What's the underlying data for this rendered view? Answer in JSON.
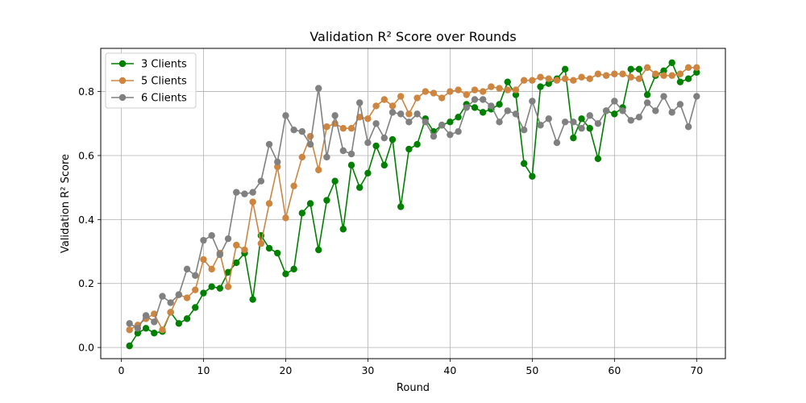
{
  "chart_data": {
    "type": "line",
    "title": "Validation R² Score over Rounds",
    "xlabel": "Round",
    "ylabel": "Validation R² Score",
    "xlim": [
      -2.5,
      73.5
    ],
    "ylim": [
      -0.035,
      0.935
    ],
    "xticks": [
      0,
      10,
      20,
      30,
      40,
      50,
      60,
      70
    ],
    "yticks": [
      0.0,
      0.2,
      0.4,
      0.6,
      0.8
    ],
    "grid": true,
    "legend_position": "upper left",
    "x": [
      1,
      2,
      3,
      4,
      5,
      6,
      7,
      8,
      9,
      10,
      11,
      12,
      13,
      14,
      15,
      16,
      17,
      18,
      19,
      20,
      21,
      22,
      23,
      24,
      25,
      26,
      27,
      28,
      29,
      30,
      31,
      32,
      33,
      34,
      35,
      36,
      37,
      38,
      39,
      40,
      41,
      42,
      43,
      44,
      45,
      46,
      47,
      48,
      49,
      50,
      51,
      52,
      53,
      54,
      55,
      56,
      57,
      58,
      59,
      60,
      61,
      62,
      63,
      64,
      65,
      66,
      67,
      68,
      69,
      70
    ],
    "series": [
      {
        "name": "3 Clients",
        "color": "#008000",
        "values": [
          0.005,
          0.045,
          0.06,
          0.045,
          0.05,
          0.11,
          0.075,
          0.09,
          0.125,
          0.17,
          0.19,
          0.185,
          0.235,
          0.265,
          0.295,
          0.15,
          0.35,
          0.31,
          0.295,
          0.23,
          0.245,
          0.42,
          0.45,
          0.305,
          0.46,
          0.52,
          0.37,
          0.57,
          0.5,
          0.545,
          0.63,
          0.57,
          0.65,
          0.44,
          0.62,
          0.635,
          0.715,
          0.675,
          0.695,
          0.705,
          0.72,
          0.76,
          0.75,
          0.735,
          0.745,
          0.76,
          0.83,
          0.79,
          0.575,
          0.535,
          0.815,
          0.825,
          0.84,
          0.87,
          0.655,
          0.715,
          0.685,
          0.59,
          0.74,
          0.73,
          0.75,
          0.87,
          0.87,
          0.79,
          0.85,
          0.865,
          0.89,
          0.83,
          0.84,
          0.86
        ]
      },
      {
        "name": "5 Clients",
        "color": "#cd853f",
        "values": [
          0.055,
          0.07,
          0.09,
          0.105,
          0.055,
          0.11,
          0.165,
          0.155,
          0.18,
          0.275,
          0.245,
          0.295,
          0.19,
          0.32,
          0.305,
          0.455,
          0.325,
          0.45,
          0.565,
          0.405,
          0.505,
          0.595,
          0.66,
          0.555,
          0.69,
          0.7,
          0.685,
          0.685,
          0.72,
          0.715,
          0.755,
          0.775,
          0.755,
          0.785,
          0.73,
          0.78,
          0.8,
          0.795,
          0.78,
          0.8,
          0.805,
          0.79,
          0.805,
          0.8,
          0.815,
          0.81,
          0.805,
          0.805,
          0.835,
          0.835,
          0.845,
          0.84,
          0.835,
          0.84,
          0.835,
          0.845,
          0.84,
          0.855,
          0.85,
          0.855,
          0.855,
          0.845,
          0.84,
          0.875,
          0.855,
          0.85,
          0.85,
          0.855,
          0.875,
          0.875
        ]
      },
      {
        "name": "6 Clients",
        "color": "#808080",
        "values": [
          0.075,
          0.06,
          0.1,
          0.08,
          0.16,
          0.14,
          0.165,
          0.245,
          0.225,
          0.335,
          0.35,
          0.29,
          0.34,
          0.485,
          0.48,
          0.485,
          0.52,
          0.635,
          0.58,
          0.725,
          0.68,
          0.675,
          0.635,
          0.81,
          0.595,
          0.725,
          0.615,
          0.605,
          0.765,
          0.64,
          0.7,
          0.655,
          0.735,
          0.73,
          0.705,
          0.73,
          0.705,
          0.66,
          0.695,
          0.665,
          0.675,
          0.75,
          0.775,
          0.775,
          0.755,
          0.705,
          0.74,
          0.73,
          0.68,
          0.77,
          0.695,
          0.715,
          0.64,
          0.705,
          0.705,
          0.685,
          0.725,
          0.7,
          0.74,
          0.77,
          0.74,
          0.71,
          0.72,
          0.765,
          0.74,
          0.785,
          0.735,
          0.76,
          0.69,
          0.785
        ]
      }
    ]
  }
}
